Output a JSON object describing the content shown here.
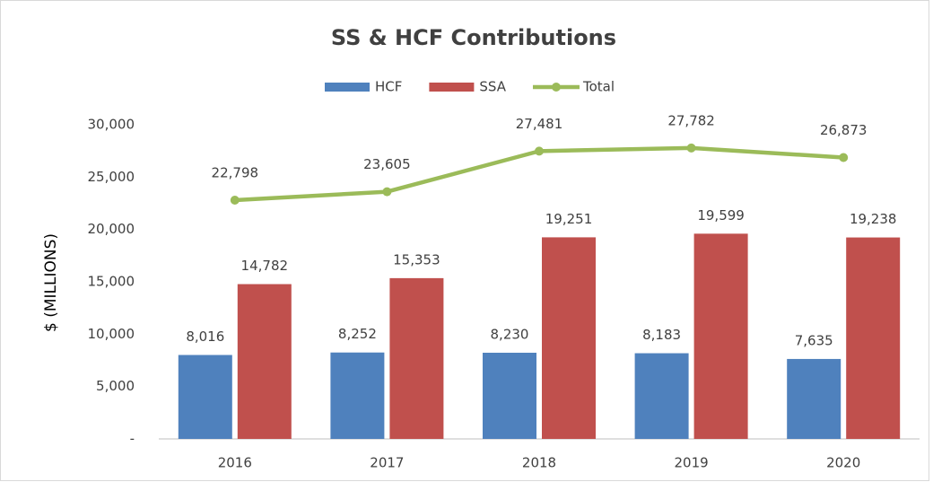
{
  "chart_data": {
    "type": "bar",
    "title": "SS & HCF Contributions",
    "y_label": "$ (MILLIONS)",
    "categories": [
      "2016",
      "2017",
      "2018",
      "2019",
      "2020"
    ],
    "series": [
      {
        "name": "HCF",
        "color": "#4f81bd",
        "values": [
          8016,
          8252,
          8230,
          8183,
          7635
        ],
        "value_labels": [
          "8,016",
          "8,252",
          "8,230",
          "8,183",
          "7,635"
        ]
      },
      {
        "name": "SSA",
        "color": "#c0504d",
        "values": [
          14782,
          15353,
          19251,
          19599,
          19238
        ],
        "value_labels": [
          "14,782",
          "15,353",
          "19,251",
          "19,599",
          "19,238"
        ]
      },
      {
        "name": "Total",
        "type": "line",
        "color": "#9bbb59",
        "values": [
          22798,
          23605,
          27481,
          27782,
          26873
        ],
        "value_labels": [
          "22,798",
          "23,605",
          "27,481",
          "27,782",
          "26,873"
        ]
      }
    ],
    "ylim": [
      0,
      30000
    ],
    "yticks": [
      {
        "value": 0,
        "label": "-"
      },
      {
        "value": 5000,
        "label": "5,000"
      },
      {
        "value": 10000,
        "label": "10,000"
      },
      {
        "value": 15000,
        "label": "15,000"
      },
      {
        "value": 20000,
        "label": "20,000"
      },
      {
        "value": 25000,
        "label": "25,000"
      },
      {
        "value": 30000,
        "label": "30,000"
      }
    ],
    "legend": "top"
  }
}
